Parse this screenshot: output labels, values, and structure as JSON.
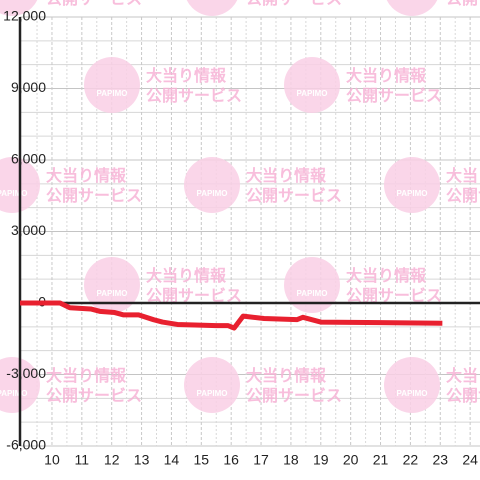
{
  "chart_data": {
    "type": "line",
    "x": [
      8.93,
      10.27,
      10.6,
      11.3,
      11.6,
      12.1,
      12.4,
      12.9,
      13.4,
      13.7,
      14.2,
      15.5,
      15.9,
      16.1,
      16.4,
      17.1,
      18.2,
      18.4,
      19.0,
      23.07
    ],
    "series": [
      {
        "color": "#e8202f",
        "values": [
          0,
          0,
          -200,
          -250,
          -350,
          -400,
          -500,
          -500,
          -700,
          -800,
          -900,
          -950,
          -950,
          -1050,
          -550,
          -650,
          -700,
          -600,
          -800,
          -850
        ]
      }
    ],
    "xlim": [
      8.93,
      24.33
    ],
    "xticks": [
      10,
      11,
      12,
      13,
      14,
      15,
      16,
      17,
      18,
      19,
      20,
      21,
      22,
      23,
      24
    ],
    "minor_xticks": [
      9.5,
      10.5,
      11.5,
      12.5,
      13.5,
      14.5,
      15.5,
      16.5,
      17.5,
      18.5,
      19.5,
      20.5,
      21.5,
      22.5,
      23.5
    ],
    "ylim": [
      -6000,
      12000
    ],
    "yticks": [
      {
        "value": -6000,
        "label": "-6,000"
      },
      {
        "value": -3000,
        "label": "-3,000"
      },
      0,
      {
        "value": 3000,
        "label": "3,000"
      },
      {
        "value": 6000,
        "label": "6,000"
      },
      {
        "value": 9000,
        "label": "9,000"
      },
      {
        "value": 12000,
        "label": "12,000"
      }
    ],
    "minor_yticks": [
      -5000,
      -4000,
      -2000,
      -1000,
      1000,
      2000,
      4000,
      5000,
      7000,
      8000,
      10000,
      11000
    ],
    "grid": true
  },
  "watermark": {
    "logo": "PAPIMO",
    "line1": "大当り情報",
    "line2": "公開サービス"
  }
}
